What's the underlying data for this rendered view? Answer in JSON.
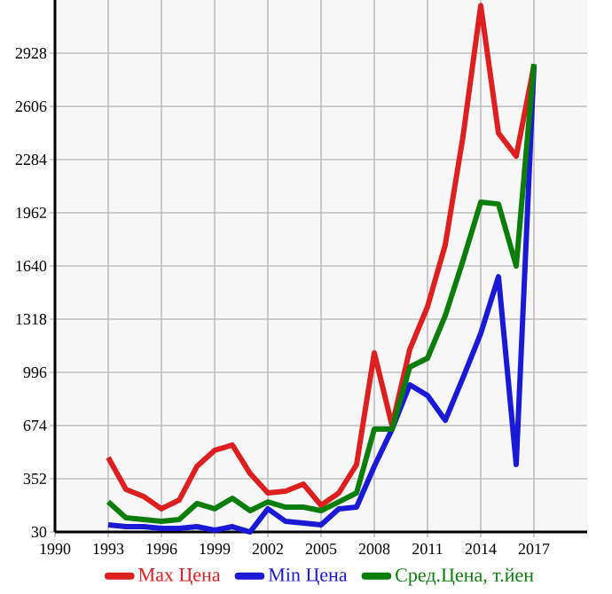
{
  "chart_data": {
    "type": "line",
    "x": [
      1993,
      1994,
      1995,
      1996,
      1997,
      1998,
      1999,
      2000,
      2001,
      2002,
      2003,
      2004,
      2005,
      2006,
      2007,
      2008,
      2009,
      2010,
      2011,
      2012,
      2013,
      2014,
      2015,
      2016,
      2017
    ],
    "series": [
      {
        "name": "Max Цена",
        "color": "#dd1f1f",
        "values": [
          481,
          288,
          245,
          170,
          223,
          427,
          524,
          556,
          384,
          266,
          277,
          320,
          191,
          266,
          438,
          1114,
          674,
          1135,
          1393,
          1768,
          2423,
          3217,
          2444,
          2305,
          2852
        ]
      },
      {
        "name": "Min Цена",
        "color": "#1a1ad6",
        "values": [
          73,
          62,
          62,
          51,
          51,
          62,
          41,
          62,
          30,
          170,
          94,
          84,
          73,
          170,
          180,
          427,
          652,
          921,
          856,
          706,
          963,
          1232,
          1575,
          438,
          2852
        ]
      },
      {
        "name": "Сред.Цена, т.йен",
        "color": "#0b7d0b",
        "values": [
          212,
          116,
          105,
          94,
          105,
          202,
          170,
          234,
          159,
          212,
          180,
          180,
          159,
          212,
          266,
          652,
          652,
          1028,
          1082,
          1339,
          1672,
          2026,
          2015,
          1640,
          2863
        ]
      }
    ],
    "xlim": [
      1990,
      2020
    ],
    "xticks": [
      1990,
      1993,
      1996,
      1999,
      2002,
      2005,
      2008,
      2011,
      2014,
      2017
    ],
    "ylim": [
      30,
      3250
    ],
    "yticks": [
      30,
      352,
      674,
      996,
      1318,
      1640,
      1962,
      2284,
      2606,
      2928
    ],
    "grid": true,
    "legend": "bottom",
    "marker": "none",
    "line_style": "solid"
  }
}
